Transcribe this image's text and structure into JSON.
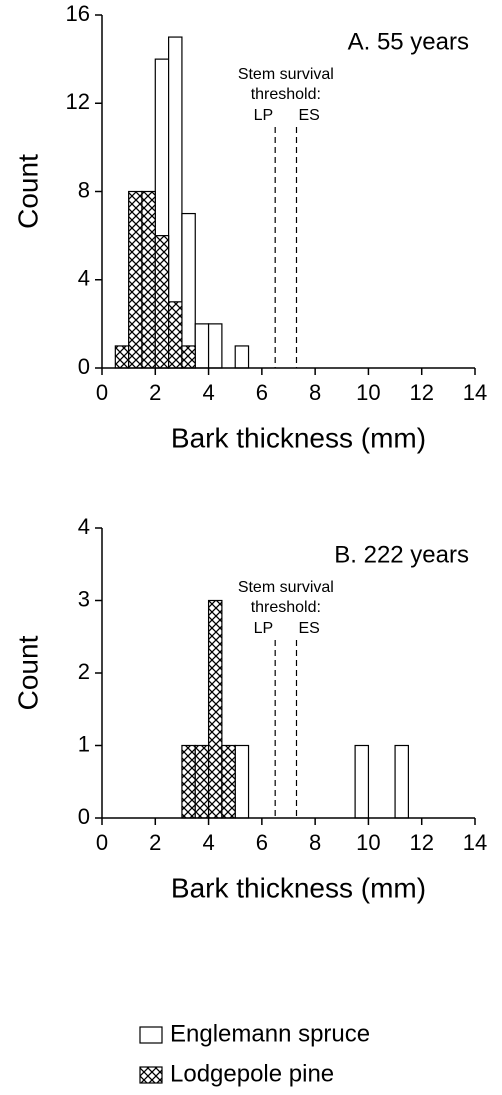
{
  "chart_data": [
    {
      "type": "histogram",
      "title": "A.  55 years",
      "xlabel": "Bark thickness (mm)",
      "ylabel": "Count",
      "bins": [
        0.5,
        1,
        1.5,
        2,
        2.5,
        3,
        3.5,
        4,
        4.5,
        5,
        5.5
      ],
      "series": [
        {
          "name": "Englemann spruce",
          "color": "#ffffff",
          "values": [
            0,
            0,
            0,
            14,
            15,
            7,
            2,
            2,
            0,
            1
          ]
        },
        {
          "name": "Lodgepole pine",
          "color": "#000000",
          "hatch": true,
          "values": [
            1,
            8,
            8,
            6,
            3,
            1,
            0,
            0,
            0,
            0
          ]
        }
      ],
      "annotation": [
        "Stem survival",
        "threshold:"
      ],
      "thresholds": [
        {
          "label": "LP",
          "value": 6.5
        },
        {
          "label": "ES",
          "value": 7.3
        }
      ],
      "xlim": [
        0,
        14
      ],
      "xticks": [
        0,
        2,
        4,
        6,
        8,
        10,
        12,
        14
      ],
      "ylim": [
        0,
        16
      ],
      "yticks": [
        0,
        4,
        8,
        12,
        16
      ]
    },
    {
      "type": "histogram",
      "title": "B.  222 years",
      "xlabel": "Bark thickness (mm)",
      "ylabel": "Count",
      "bins": [
        3,
        3.5,
        4,
        4.5,
        5,
        5.5,
        6,
        6.5,
        7,
        7.5,
        8,
        8.5,
        9,
        9.5,
        10,
        10.5,
        11,
        11.5
      ],
      "series": [
        {
          "name": "Englemann spruce",
          "color": "#ffffff",
          "values": [
            0,
            0,
            0,
            0,
            1,
            0,
            0,
            0,
            0,
            0,
            0,
            0,
            0,
            1,
            0,
            0,
            1
          ]
        },
        {
          "name": "Lodgepole pine",
          "color": "#000000",
          "hatch": true,
          "values": [
            1,
            1,
            3,
            1,
            0,
            0,
            0,
            0,
            0,
            0,
            0,
            0,
            0,
            0,
            0,
            0,
            0
          ]
        }
      ],
      "annotation": [
        "Stem survival",
        "threshold:"
      ],
      "thresholds": [
        {
          "label": "LP",
          "value": 6.5
        },
        {
          "label": "ES",
          "value": 7.3
        }
      ],
      "xlim": [
        0,
        14
      ],
      "xticks": [
        0,
        2,
        4,
        6,
        8,
        10,
        12,
        14
      ],
      "ylim": [
        0,
        4
      ],
      "yticks": [
        0,
        1,
        2,
        3,
        4
      ]
    }
  ]
}
